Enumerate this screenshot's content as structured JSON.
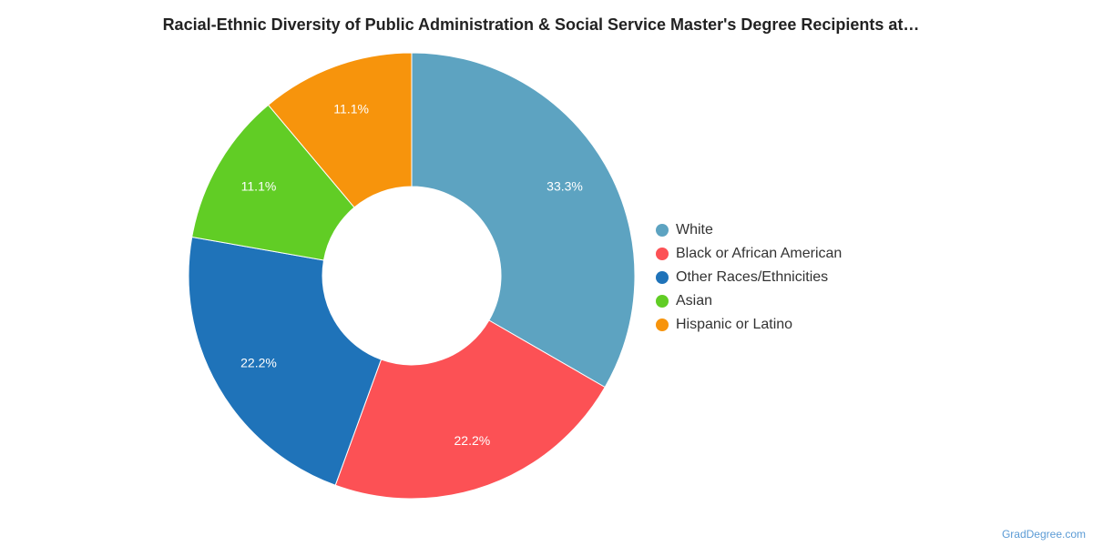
{
  "chart_data": {
    "type": "pie",
    "title": "Racial-Ethnic Diversity of Public Administration & Social Service Master's Degree Recipients at…",
    "categories": [
      "White",
      "Black or African American",
      "Other Races/Ethnicities",
      "Asian",
      "Hispanic or Latino"
    ],
    "values": [
      33.3,
      22.2,
      22.2,
      11.1,
      11.1
    ],
    "value_labels": [
      "33.3%",
      "22.2%",
      "22.2%",
      "11.1%",
      "11.1%"
    ],
    "colors": [
      "#5da3c1",
      "#fc5155",
      "#1f73b9",
      "#61cd25",
      "#f7940c"
    ],
    "donut": true,
    "legend_position": "right"
  },
  "credit": "GradDegree.com"
}
